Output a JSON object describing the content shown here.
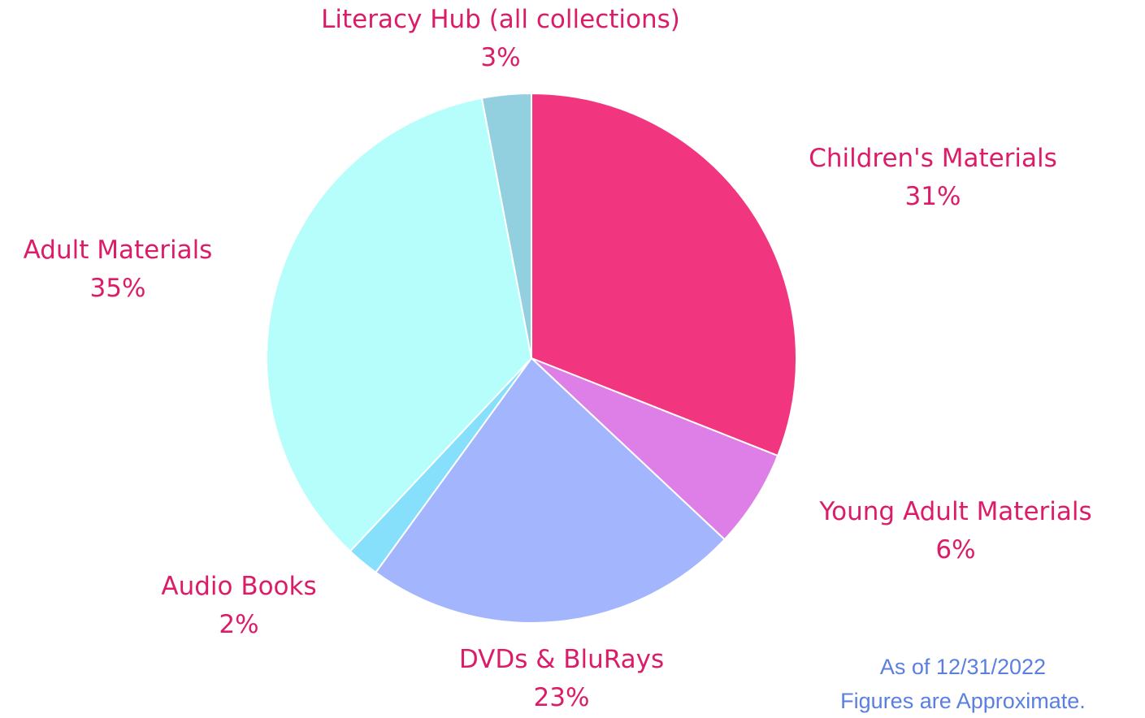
{
  "chart_data": {
    "type": "pie",
    "start_angle_deg_clockwise_from_top": 0,
    "direction": "clockwise",
    "slices": [
      {
        "label": "Children's Materials",
        "value": 31,
        "value_label": "31%",
        "color": "#f2357f"
      },
      {
        "label": "Young Adult Materials",
        "value": 6,
        "value_label": "6%",
        "color": "#dd7fe6"
      },
      {
        "label": "DVDs & BluRays",
        "value": 23,
        "value_label": "23%",
        "color": "#a3b5fd"
      },
      {
        "label": "Audio Books",
        "value": 2,
        "value_label": "2%",
        "color": "#87e0fb"
      },
      {
        "label": "Adult Materials",
        "value": 35,
        "value_label": "35%",
        "color": "#b5fefc"
      },
      {
        "label": "Literacy Hub (all collections)",
        "value": 3,
        "value_label": "3%",
        "color": "#92d0e0"
      }
    ],
    "label_color": "#db1c69"
  },
  "notes": {
    "as_of": "As of 12/31/2022",
    "approximate": "Figures are Approximate.",
    "color": "#5a7fe0"
  }
}
